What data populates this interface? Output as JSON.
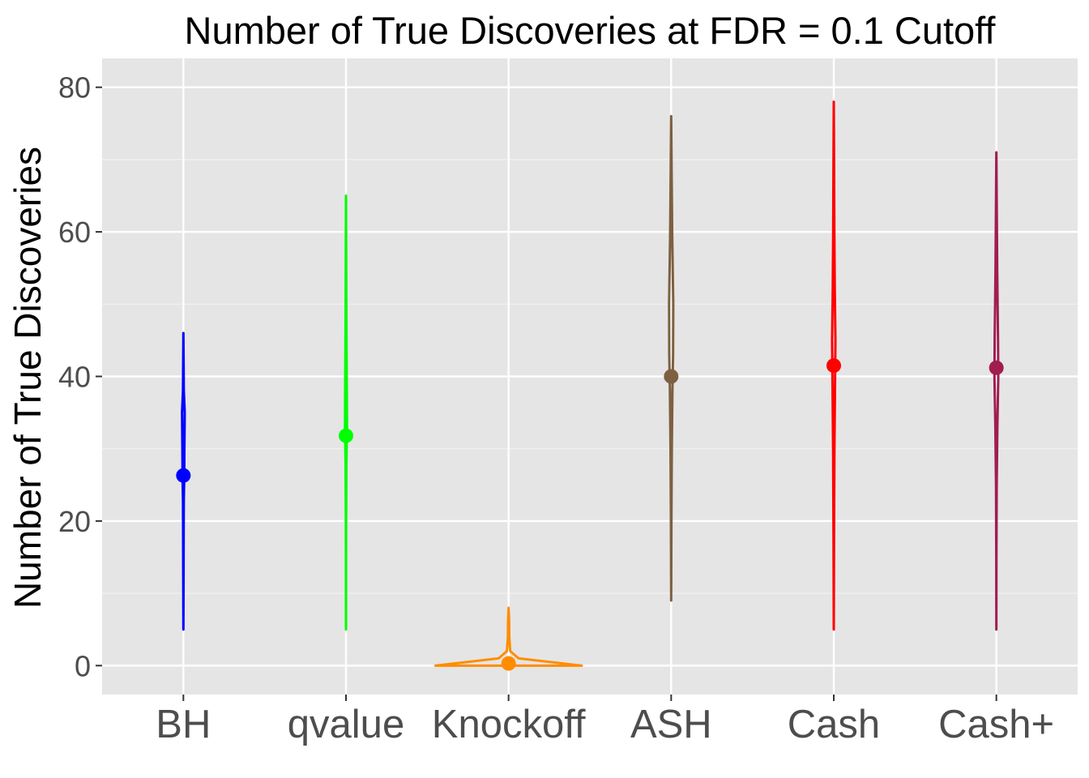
{
  "chart_data": {
    "type": "violin",
    "title": "Number of True Discoveries at FDR = 0.1 Cutoff",
    "xlabel": "",
    "ylabel": "Number of True Discoveries",
    "ylim": [
      -4,
      84
    ],
    "yticks": [
      0,
      20,
      40,
      60,
      80
    ],
    "ytick_labels": [
      "0",
      "20",
      "40",
      "60",
      "80"
    ],
    "grid": true,
    "legend": "none",
    "categories": [
      "BH",
      "qvalue",
      "Knockoff",
      "ASH",
      "Cash",
      "Cash+"
    ],
    "series": [
      {
        "category": "BH",
        "color": "#0000ff",
        "mean": 26.3,
        "min": 5,
        "max": 46,
        "density": [
          [
            5,
            0
          ],
          [
            12,
            0.2
          ],
          [
            19,
            0.35
          ],
          [
            23,
            0.5
          ],
          [
            26,
            1
          ],
          [
            30,
            1.2
          ],
          [
            35,
            1.6
          ],
          [
            38,
            0.5
          ],
          [
            46,
            0
          ]
        ]
      },
      {
        "category": "qvalue",
        "color": "#00ff00",
        "mean": 31.8,
        "min": 5,
        "max": 65,
        "density": [
          [
            5,
            0
          ],
          [
            20,
            0.15
          ],
          [
            28,
            0.5
          ],
          [
            33,
            1.2
          ],
          [
            40,
            0.9
          ],
          [
            43,
            0.7
          ],
          [
            50,
            0.4
          ],
          [
            65,
            0
          ]
        ]
      },
      {
        "category": "Knockoff",
        "color": "#ff8c00",
        "mean": 0.3,
        "min": 0,
        "max": 8,
        "density": [
          [
            0,
            88
          ],
          [
            1,
            12
          ],
          [
            2,
            2
          ],
          [
            4,
            0.8
          ],
          [
            6,
            0.7
          ],
          [
            8,
            0
          ]
        ]
      },
      {
        "category": "ASH",
        "color": "#7d6040",
        "mean": 40,
        "min": 9,
        "max": 76,
        "density": [
          [
            9,
            0
          ],
          [
            20,
            0.3
          ],
          [
            30,
            0.8
          ],
          [
            38,
            1.5
          ],
          [
            43,
            2.3
          ],
          [
            50,
            2.5
          ],
          [
            60,
            1.2
          ],
          [
            76,
            0
          ]
        ]
      },
      {
        "category": "Cash",
        "color": "#ff0000",
        "mean": 41.5,
        "min": 5,
        "max": 78,
        "density": [
          [
            5,
            0
          ],
          [
            18,
            0.3
          ],
          [
            30,
            0.8
          ],
          [
            40,
            1.6
          ],
          [
            45,
            2
          ],
          [
            52,
            1.2
          ],
          [
            60,
            0.7
          ],
          [
            78,
            0
          ]
        ]
      },
      {
        "category": "Cash+",
        "color": "#a01d50",
        "mean": 41.2,
        "min": 5,
        "max": 71,
        "density": [
          [
            5,
            0
          ],
          [
            15,
            0.1
          ],
          [
            25,
            0.4
          ],
          [
            33,
            1.2
          ],
          [
            40,
            2.3
          ],
          [
            45,
            2
          ],
          [
            55,
            1
          ],
          [
            71,
            0
          ]
        ]
      }
    ]
  }
}
